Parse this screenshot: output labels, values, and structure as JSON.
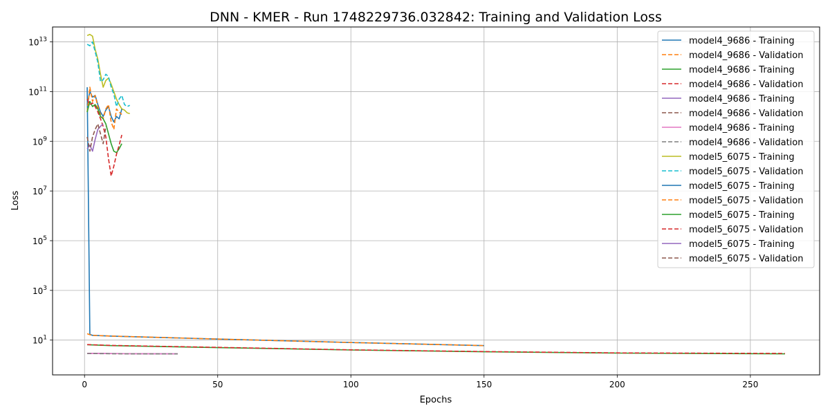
{
  "chart_data": {
    "type": "line",
    "title": "DNN - KMER - Run 1748229736.032842: Training and Validation Loss",
    "xlabel": "Epochs",
    "ylabel": "Loss",
    "xlim": [
      -12,
      276
    ],
    "ylim_log10": [
      -0.4,
      13.6
    ],
    "yscale": "log",
    "grid": true,
    "legend_position": "top-right",
    "x_ticks": [
      0,
      50,
      100,
      150,
      200,
      250
    ],
    "y_ticks": [
      {
        "exp": 1,
        "label": "10",
        "sup": "1"
      },
      {
        "exp": 3,
        "label": "10",
        "sup": "3"
      },
      {
        "exp": 5,
        "label": "10",
        "sup": "5"
      },
      {
        "exp": 7,
        "label": "10",
        "sup": "7"
      },
      {
        "exp": 9,
        "label": "10",
        "sup": "9"
      },
      {
        "exp": 11,
        "label": "10",
        "sup": "11"
      },
      {
        "exp": 13,
        "label": "10",
        "sup": "13"
      }
    ],
    "series": [
      {
        "name": "model4_9686 - Training",
        "color": "#1f77b4",
        "dash": "solid",
        "x": [
          1,
          2,
          3,
          10,
          50,
          100,
          150
        ],
        "y": [
          150000000000,
          17,
          15.5,
          14.5,
          11,
          8,
          6
        ]
      },
      {
        "name": "model4_9686 - Validation",
        "color": "#ff7f0e",
        "dash": "dashed",
        "x": [
          1,
          2,
          3,
          10,
          50,
          100,
          150
        ],
        "y": [
          18,
          16.5,
          15.5,
          14.5,
          11,
          8,
          6
        ]
      },
      {
        "name": "model4_9686 - Training",
        "color": "#2ca02c",
        "dash": "solid",
        "x": [
          1,
          10,
          50,
          100,
          150,
          200,
          263
        ],
        "y": [
          6.5,
          6,
          5,
          4,
          3.4,
          3.0,
          2.8
        ]
      },
      {
        "name": "model4_9686 - Validation",
        "color": "#d62728",
        "dash": "dashed",
        "x": [
          1,
          10,
          50,
          100,
          150,
          200,
          263
        ],
        "y": [
          6.6,
          6.1,
          5.1,
          4.05,
          3.45,
          3.05,
          2.9
        ]
      },
      {
        "name": "model4_9686 - Training",
        "color": "#9467bd",
        "dash": "solid",
        "x": [
          1,
          10,
          20,
          35
        ],
        "y": [
          2.95,
          2.88,
          2.83,
          2.8
        ]
      },
      {
        "name": "model4_9686 - Validation",
        "color": "#8c564b",
        "dash": "dashed",
        "x": [
          1,
          10,
          20,
          35
        ],
        "y": [
          2.9,
          2.85,
          2.8,
          2.78
        ]
      },
      {
        "name": "model4_9686 - Training",
        "color": "#e377c2",
        "dash": "solid",
        "x": [
          1,
          10,
          20,
          35
        ],
        "y": [
          2.92,
          2.86,
          2.82,
          2.79
        ]
      },
      {
        "name": "model4_9686 - Validation",
        "color": "#7f7f7f",
        "dash": "dashed",
        "x": [
          1,
          10,
          20,
          35
        ],
        "y": [
          2.88,
          2.83,
          2.79,
          2.77
        ]
      },
      {
        "name": "model5_6075 - Training",
        "color": "#bcbd22",
        "dash": "solid",
        "x": [
          1,
          2,
          3,
          4,
          5,
          6,
          7,
          8,
          9,
          10,
          11,
          12,
          13,
          14,
          15,
          16,
          17
        ],
        "y": [
          18000000000000,
          20000000000000,
          17000000000000,
          5000000000000,
          2000000000000,
          500000000000,
          150000000000,
          280000000000,
          350000000000,
          200000000000,
          100000000000,
          50000000000,
          30000000000,
          20000000000,
          18000000000,
          14000000000,
          13000000000
        ]
      },
      {
        "name": "model5_6075 - Validation",
        "color": "#17becf",
        "dash": "dashed",
        "x": [
          1,
          2,
          3,
          4,
          5,
          6,
          7,
          8,
          9,
          10,
          11,
          12,
          13,
          14,
          15,
          16,
          17
        ],
        "y": [
          8000000000000,
          7000000000000,
          10000000000000,
          4000000000000,
          1500000000000,
          250000000000,
          300000000000,
          500000000000,
          400000000000,
          150000000000,
          80000000000,
          25000000000,
          50000000000,
          70000000000,
          30000000000,
          25000000000,
          28000000000
        ]
      },
      {
        "name": "model5_6075 - Training",
        "color": "#1f77b4",
        "dash": "solid",
        "x": [
          1,
          2,
          3,
          4,
          5,
          6,
          7,
          8,
          9,
          10,
          11,
          12,
          13,
          14
        ],
        "y": [
          30000000000,
          100000000000,
          60000000000,
          70000000000,
          30000000000,
          15000000000,
          10000000000,
          18000000000,
          25000000000,
          10000000000,
          6000000000,
          10000000000,
          8000000000,
          20000000000
        ]
      },
      {
        "name": "model5_6075 - Validation",
        "color": "#ff7f0e",
        "dash": "dashed",
        "x": [
          1,
          2,
          3,
          4,
          5,
          6,
          7,
          8,
          9,
          10,
          11,
          12,
          13,
          14
        ],
        "y": [
          15000000000,
          150000000000,
          40000000000,
          70000000000,
          25000000000,
          12000000000,
          8000000000,
          20000000000,
          30000000000,
          6000000000,
          3000000000,
          20000000000,
          15000000000,
          12000000000
        ]
      },
      {
        "name": "model5_6075 - Training",
        "color": "#2ca02c",
        "dash": "solid",
        "x": [
          1,
          2,
          3,
          4,
          5,
          6,
          7,
          8,
          9,
          10,
          11,
          12,
          13,
          14
        ],
        "y": [
          15000000000,
          40000000000,
          25000000000,
          30000000000,
          20000000000,
          10000000000,
          8000000000,
          5000000000,
          2000000000,
          800000000,
          400000000,
          350000000,
          500000000,
          800000000
        ]
      },
      {
        "name": "model5_6075 - Validation",
        "color": "#d62728",
        "dash": "dashed",
        "x": [
          1,
          2,
          3,
          4,
          5,
          6,
          7,
          8,
          9,
          10,
          11,
          12,
          13,
          14
        ],
        "y": [
          50000000000,
          30000000000,
          35000000000,
          25000000000,
          15000000000,
          8000000000,
          4000000000,
          1500000000,
          200000000,
          40000000,
          100000000,
          300000000,
          700000000,
          1800000000
        ]
      },
      {
        "name": "model5_6075 - Training",
        "color": "#9467bd",
        "dash": "solid",
        "x": [
          1,
          2,
          3,
          4,
          5,
          6,
          7
        ],
        "y": [
          500000000,
          700000000,
          400000000,
          1200000000,
          3000000000,
          4000000000,
          5000000000
        ]
      },
      {
        "name": "model5_6075 - Validation",
        "color": "#8c564b",
        "dash": "dashed",
        "x": [
          1,
          2,
          3,
          4,
          5,
          6,
          7,
          8
        ],
        "y": [
          1500000000,
          400000000,
          1500000000,
          3000000000,
          5000000000,
          2000000000,
          800000000,
          4000000000
        ]
      }
    ]
  }
}
